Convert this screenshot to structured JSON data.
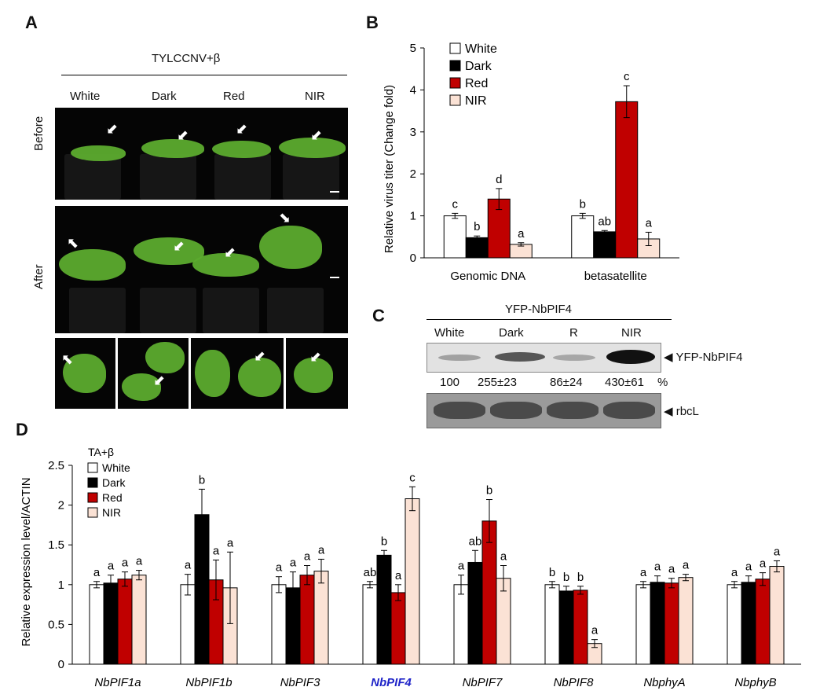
{
  "panelA": {
    "letter": "A",
    "group_title": "TYLCCNV+β",
    "columns": [
      "White",
      "Dark",
      "Red",
      "NIR"
    ],
    "rows": [
      "Before",
      "After"
    ]
  },
  "panelB": {
    "letter": "B"
  },
  "panelC": {
    "letter": "C",
    "header": "YFP-NbPIF4",
    "lanes": [
      "White",
      "Dark",
      "R",
      "NIR"
    ],
    "band_label": "YFP-NbPIF4",
    "quant": [
      "100",
      "255±23",
      "86±24",
      "430±61"
    ],
    "quant_unit": "%",
    "loading_label": "rbcL"
  },
  "panelD": {
    "letter": "D"
  },
  "chart_data": [
    {
      "type": "bar",
      "ylabel": "Relative virus titer (Change fold)",
      "ylim": [
        0,
        5
      ],
      "yticks": [
        0,
        1,
        2,
        3,
        4,
        5
      ],
      "categories": [
        "Genomic DNA",
        "betasatellite"
      ],
      "series": [
        {
          "name": "White",
          "color": "#ffffff",
          "values": [
            1.0,
            1.0
          ],
          "errors": [
            0.06,
            0.06
          ],
          "letters": [
            "c",
            "b"
          ]
        },
        {
          "name": "Dark",
          "color": "#000000",
          "values": [
            0.48,
            0.62
          ],
          "errors": [
            0.04,
            0.03
          ],
          "letters": [
            "b",
            "ab"
          ]
        },
        {
          "name": "Red",
          "color": "#c00000",
          "values": [
            1.4,
            3.72
          ],
          "errors": [
            0.25,
            0.38
          ],
          "letters": [
            "d",
            "c"
          ]
        },
        {
          "name": "NIR",
          "color": "#fbe2d5",
          "values": [
            0.32,
            0.45
          ],
          "errors": [
            0.04,
            0.16
          ],
          "letters": [
            "a",
            "a"
          ]
        }
      ],
      "legend": "top-left"
    },
    {
      "type": "bar",
      "ylabel": "Relative expression level/ACTIN",
      "ylim": [
        0,
        2.5
      ],
      "yticks": [
        "0",
        "0.5",
        "1",
        "1.5",
        "2",
        "2.5"
      ],
      "legend_title": "TA+β",
      "categories": [
        "NbPIF1a",
        "NbPIF1b",
        "NbPIF3",
        "NbPIF4",
        "NbPIF7",
        "NbPIF8",
        "NbphyA",
        "NbphyB"
      ],
      "highlight_category": "NbPIF4",
      "highlight_color": "#1f24c8",
      "series": [
        {
          "name": "White",
          "color": "#ffffff",
          "values": [
            1.0,
            1.0,
            1.0,
            1.0,
            1.0,
            1.0,
            1.0,
            1.0
          ],
          "errors": [
            0.04,
            0.13,
            0.1,
            0.04,
            0.12,
            0.04,
            0.04,
            0.04
          ],
          "letters": [
            "a",
            "a",
            "a",
            "ab",
            "a",
            "b",
            "a",
            "a"
          ]
        },
        {
          "name": "Dark",
          "color": "#000000",
          "values": [
            1.02,
            1.88,
            0.96,
            1.37,
            1.28,
            0.92,
            1.03,
            1.03
          ],
          "errors": [
            0.1,
            0.32,
            0.2,
            0.06,
            0.15,
            0.06,
            0.08,
            0.08
          ],
          "letters": [
            "a",
            "b",
            "a",
            "b",
            "ab",
            "b",
            "a",
            "a"
          ]
        },
        {
          "name": "Red",
          "color": "#c00000",
          "values": [
            1.07,
            1.06,
            1.12,
            0.9,
            1.8,
            0.93,
            1.02,
            1.07
          ],
          "errors": [
            0.09,
            0.25,
            0.12,
            0.1,
            0.27,
            0.05,
            0.06,
            0.08
          ],
          "letters": [
            "a",
            "a",
            "a",
            "a",
            "b",
            "b",
            "a",
            "a"
          ]
        },
        {
          "name": "NIR",
          "color": "#fbe2d5",
          "values": [
            1.12,
            0.96,
            1.17,
            2.08,
            1.08,
            0.26,
            1.09,
            1.23
          ],
          "errors": [
            0.06,
            0.45,
            0.15,
            0.15,
            0.16,
            0.05,
            0.04,
            0.07
          ],
          "letters": [
            "a",
            "a",
            "a",
            "c",
            "a",
            "a",
            "a",
            "a"
          ]
        }
      ],
      "legend": "top-left"
    }
  ]
}
